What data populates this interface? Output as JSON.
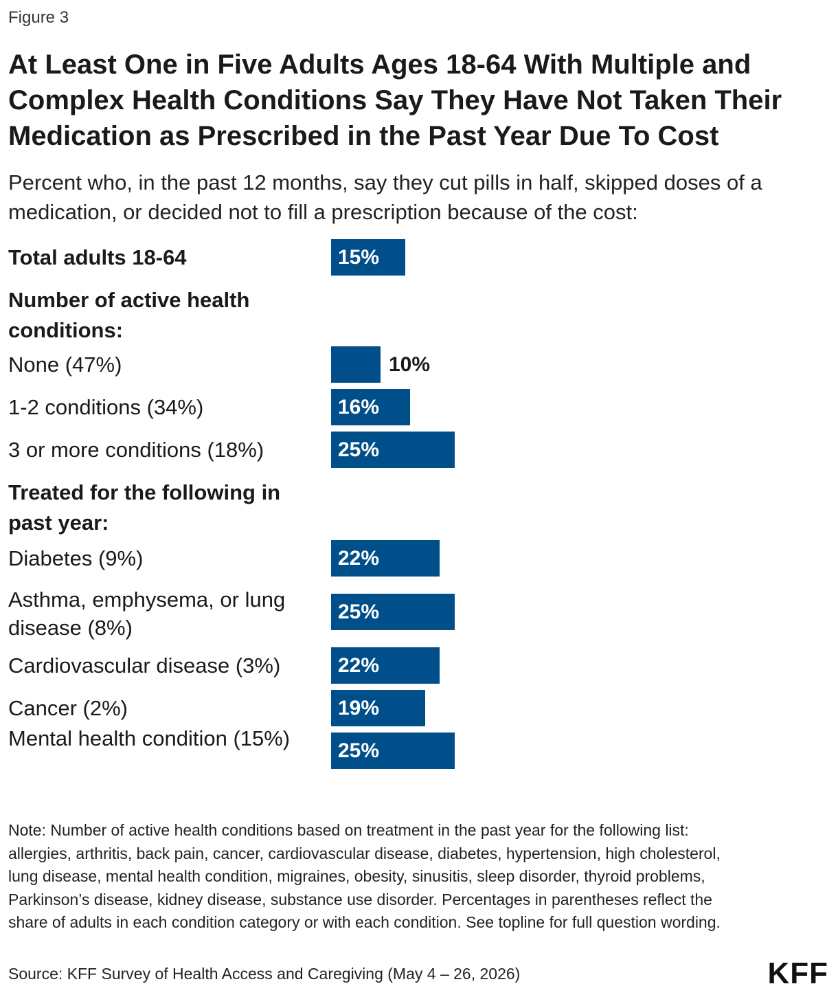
{
  "figure_label": "Figure 3",
  "title": "At Least One in Five Adults Ages 18-64 With Multiple and Complex Health Conditions Say They Have Not Taken Their Medication as Prescribed in the Past Year Due To Cost",
  "subtitle": "Percent who, in the past 12 months, say they cut pills in half, skipped doses of a medication, or decided not to fill a prescription because of the cost:",
  "colors": {
    "bar": "#004e8a",
    "label_inside": "#ffffff",
    "label_outside": "#1a1a1a"
  },
  "chart_data": {
    "type": "bar",
    "orientation": "horizontal",
    "xlim": [
      0,
      40
    ],
    "rows": [
      {
        "kind": "bar",
        "label": "Total adults 18-64",
        "value": 15,
        "value_label": "15%",
        "bold": true
      },
      {
        "kind": "header",
        "label": "Number of active health conditions:"
      },
      {
        "kind": "bar",
        "label": "None (47%)",
        "value": 10,
        "value_label": "10%"
      },
      {
        "kind": "bar",
        "label": "1-2 conditions (34%)",
        "value": 16,
        "value_label": "16%"
      },
      {
        "kind": "bar",
        "label": "3 or more conditions (18%)",
        "value": 25,
        "value_label": "25%"
      },
      {
        "kind": "header",
        "label": "Treated for the following in past year:"
      },
      {
        "kind": "bar",
        "label": "Diabetes (9%)",
        "value": 22,
        "value_label": "22%"
      },
      {
        "kind": "bar",
        "label": "Asthma, emphysema, or lung disease (8%)",
        "value": 25,
        "value_label": "25%"
      },
      {
        "kind": "bar",
        "label": "Cardiovascular disease (3%)",
        "value": 22,
        "value_label": "22%"
      },
      {
        "kind": "bar",
        "label": "Cancer (2%)",
        "value": 19,
        "value_label": "19%"
      },
      {
        "kind": "bar",
        "label": "Mental health condition (15%)",
        "value": 25,
        "value_label": "25%"
      }
    ]
  },
  "note": "Note: Number of active health conditions based on treatment in the past year for the following list: allergies, arthritis, back pain, cancer, cardiovascular disease, diabetes, hypertension, high cholesterol, lung disease, mental health condition, migraines, obesity, sinusitis, sleep disorder, thyroid problems, Parkinson’s disease, kidney disease, substance use disorder. Percentages in parentheses reflect the share of adults in each condition category or with each condition. See topline for full question wording.",
  "source": "Source: KFF Survey of Health Access and Caregiving (May 4 – 26, 2026)",
  "logo_text": "KFF"
}
